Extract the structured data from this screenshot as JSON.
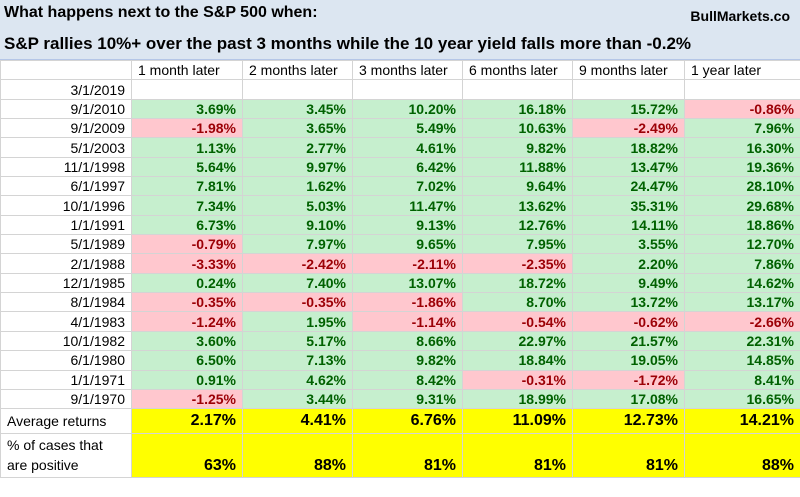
{
  "header": {
    "title": "What happens next to the S&P 500 when:",
    "source": "BullMarkets.co",
    "subtitle": "S&P rallies 10%+ over the past 3 months while the 10 year yield falls more than -0.2%"
  },
  "table": {
    "columns": [
      "1 month later",
      "2 months later",
      "3 months later",
      "6 months later",
      "9 months later",
      "1 year later"
    ],
    "rows": [
      {
        "date": "3/1/2019",
        "values": []
      },
      {
        "date": "9/1/2010",
        "values": [
          "3.69%",
          "3.45%",
          "10.20%",
          "16.18%",
          "15.72%",
          "-0.86%"
        ]
      },
      {
        "date": "9/1/2009",
        "values": [
          "-1.98%",
          "3.65%",
          "5.49%",
          "10.63%",
          "-2.49%",
          "7.96%"
        ]
      },
      {
        "date": "5/1/2003",
        "values": [
          "1.13%",
          "2.77%",
          "4.61%",
          "9.82%",
          "18.82%",
          "16.30%"
        ]
      },
      {
        "date": "11/1/1998",
        "values": [
          "5.64%",
          "9.97%",
          "6.42%",
          "11.88%",
          "13.47%",
          "19.36%"
        ]
      },
      {
        "date": "6/1/1997",
        "values": [
          "7.81%",
          "1.62%",
          "7.02%",
          "9.64%",
          "24.47%",
          "28.10%"
        ]
      },
      {
        "date": "10/1/1996",
        "values": [
          "7.34%",
          "5.03%",
          "11.47%",
          "13.62%",
          "35.31%",
          "29.68%"
        ]
      },
      {
        "date": "1/1/1991",
        "values": [
          "6.73%",
          "9.10%",
          "9.13%",
          "12.76%",
          "14.11%",
          "18.86%"
        ]
      },
      {
        "date": "5/1/1989",
        "values": [
          "-0.79%",
          "7.97%",
          "9.65%",
          "7.95%",
          "3.55%",
          "12.70%"
        ]
      },
      {
        "date": "2/1/1988",
        "values": [
          "-3.33%",
          "-2.42%",
          "-2.11%",
          "-2.35%",
          "2.20%",
          "7.86%"
        ]
      },
      {
        "date": "12/1/1985",
        "values": [
          "0.24%",
          "7.40%",
          "13.07%",
          "18.72%",
          "9.49%",
          "14.62%"
        ]
      },
      {
        "date": "8/1/1984",
        "values": [
          "-0.35%",
          "-0.35%",
          "-1.86%",
          "8.70%",
          "13.72%",
          "13.17%"
        ]
      },
      {
        "date": "4/1/1983",
        "values": [
          "-1.24%",
          "1.95%",
          "-1.14%",
          "-0.54%",
          "-0.62%",
          "-2.66%"
        ]
      },
      {
        "date": "10/1/1982",
        "values": [
          "3.60%",
          "5.17%",
          "8.66%",
          "22.97%",
          "21.57%",
          "22.31%"
        ]
      },
      {
        "date": "6/1/1980",
        "values": [
          "6.50%",
          "7.13%",
          "9.82%",
          "18.84%",
          "19.05%",
          "14.85%"
        ]
      },
      {
        "date": "1/1/1971",
        "values": [
          "0.91%",
          "4.62%",
          "8.42%",
          "-0.31%",
          "-1.72%",
          "8.41%"
        ]
      },
      {
        "date": "9/1/1970",
        "values": [
          "-1.25%",
          "3.44%",
          "9.31%",
          "18.99%",
          "17.08%",
          "16.65%"
        ]
      }
    ],
    "summary": [
      {
        "label": "Average returns",
        "values": [
          "2.17%",
          "4.41%",
          "6.76%",
          "11.09%",
          "12.73%",
          "14.21%"
        ]
      },
      {
        "label": "% of cases that are positive",
        "values": [
          "63%",
          "88%",
          "81%",
          "81%",
          "81%",
          "88%"
        ]
      }
    ]
  }
}
